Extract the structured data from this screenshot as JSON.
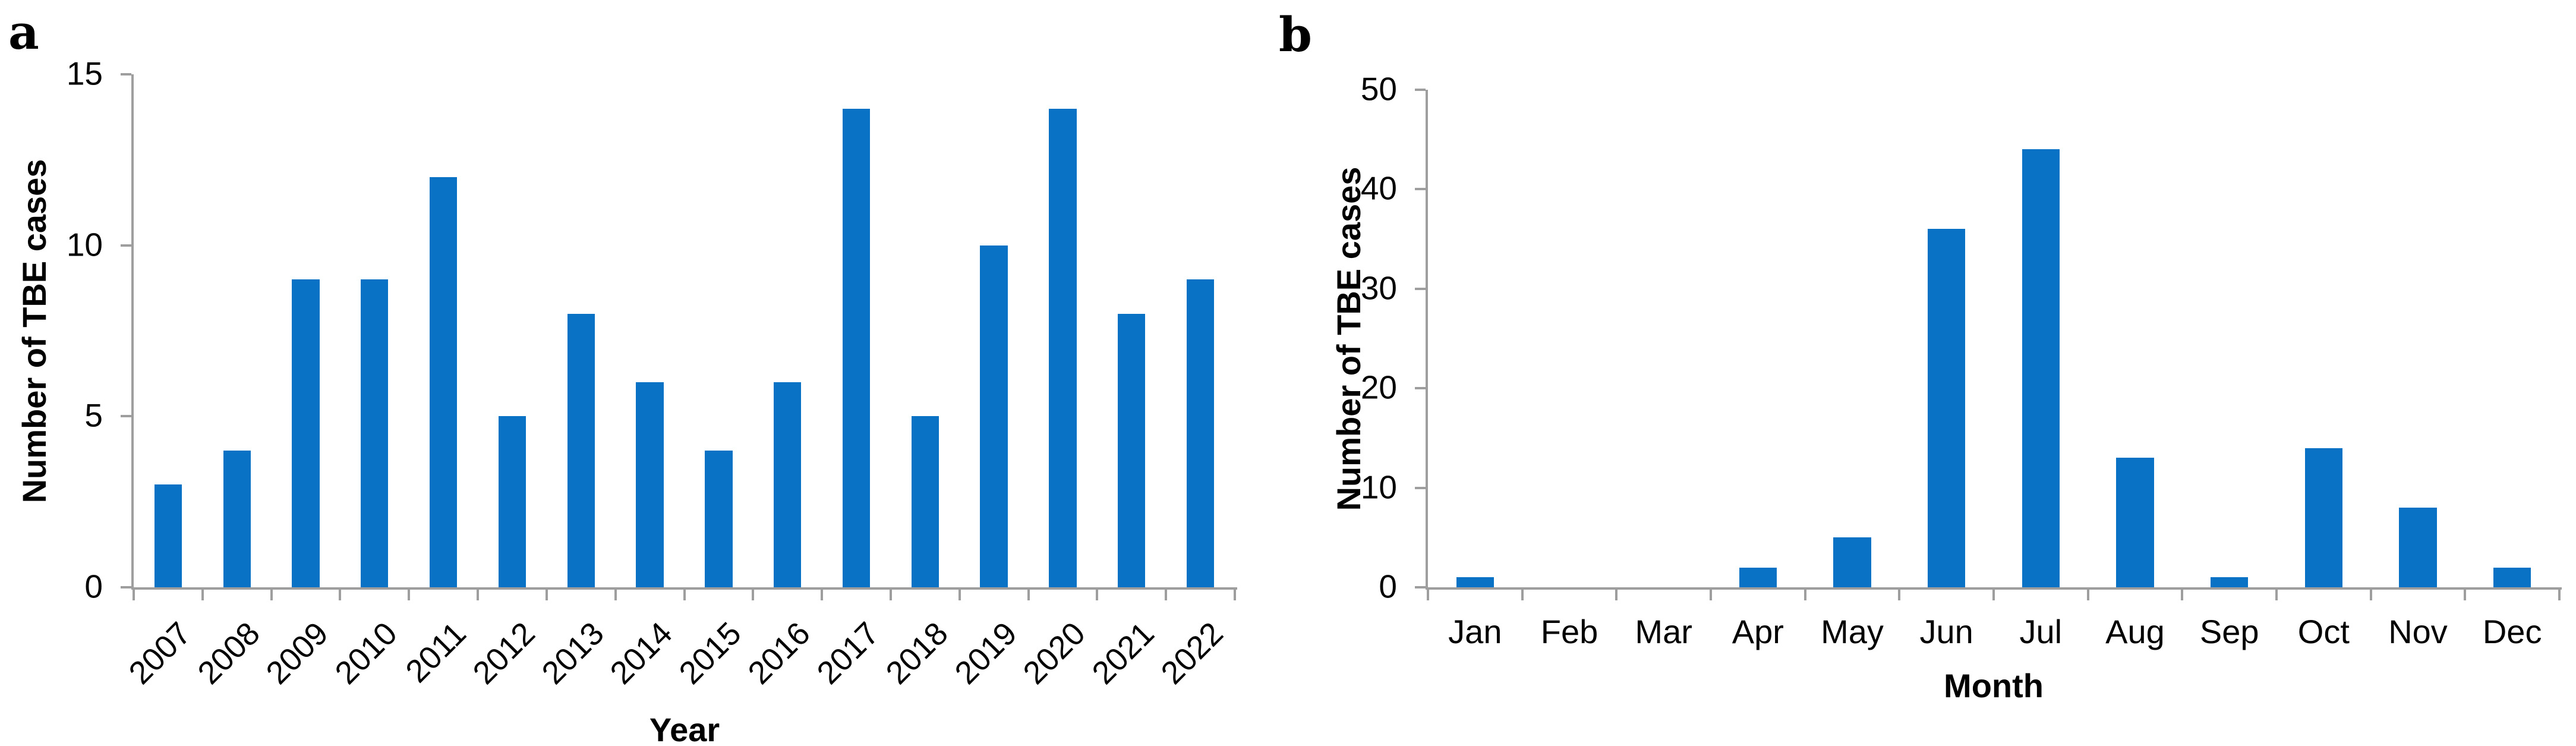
{
  "figure": {
    "background": "#ffffff",
    "panel_labels": [
      "a",
      "b"
    ]
  },
  "colors": {
    "bar": "#0a72c4",
    "axis": "#9e9e9e",
    "text": "#000000"
  },
  "chart_data": [
    {
      "type": "bar",
      "panel_label": "a",
      "title": "",
      "xlabel": "Year",
      "ylabel": "Number of TBE cases",
      "categories": [
        "2007",
        "2008",
        "2009",
        "2010",
        "2011",
        "2012",
        "2013",
        "2014",
        "2015",
        "2016",
        "2017",
        "2018",
        "2019",
        "2020",
        "2021",
        "2022"
      ],
      "values": [
        3,
        4,
        9,
        9,
        12,
        5,
        8,
        6,
        4,
        6,
        14,
        5,
        10,
        14,
        8,
        9
      ],
      "ylim": [
        0,
        15
      ],
      "yticks": [
        0,
        5,
        10,
        15
      ],
      "grid": false,
      "legend": null,
      "x_tick_rotation": -45,
      "bar_color": "#0a72c4"
    },
    {
      "type": "bar",
      "panel_label": "b",
      "title": "",
      "xlabel": "Month",
      "ylabel": "Number of TBE cases",
      "categories": [
        "Jan",
        "Feb",
        "Mar",
        "Apr",
        "May",
        "Jun",
        "Jul",
        "Aug",
        "Sep",
        "Oct",
        "Nov",
        "Dec"
      ],
      "values": [
        1,
        0,
        0,
        2,
        5,
        36,
        44,
        13,
        1,
        14,
        8,
        2
      ],
      "ylim": [
        0,
        50
      ],
      "yticks": [
        0,
        10,
        20,
        30,
        40,
        50
      ],
      "grid": false,
      "legend": null,
      "x_tick_rotation": 0,
      "bar_color": "#0a72c4"
    }
  ]
}
